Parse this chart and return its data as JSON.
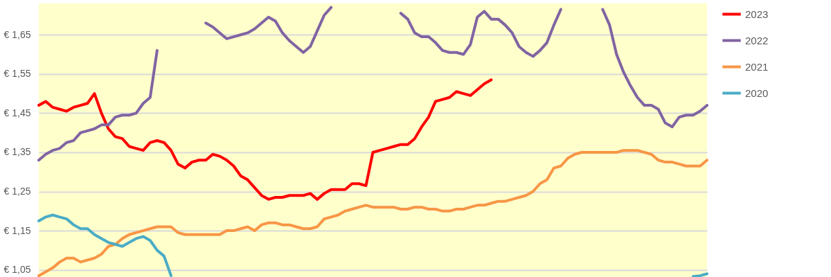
{
  "chart_data": {
    "type": "line",
    "categories": [
      null,
      null,
      null,
      null,
      null,
      null,
      null,
      null,
      null,
      null,
      null,
      null,
      null,
      null,
      null,
      null,
      null,
      null,
      null,
      null,
      null,
      null,
      null,
      null,
      null,
      null,
      null,
      null,
      null,
      null,
      null,
      null,
      null,
      null,
      null,
      null,
      null,
      null,
      null,
      null,
      null,
      null,
      null,
      null,
      null,
      null,
      null,
      null,
      null,
      null,
      null,
      null,
      null,
      null,
      null,
      null,
      null,
      null,
      null,
      null,
      null,
      null,
      null,
      null,
      null,
      null,
      null,
      null,
      null,
      null,
      null,
      null,
      null,
      null,
      null,
      null,
      null,
      null,
      null,
      null,
      null,
      null,
      null,
      null,
      null,
      null,
      null,
      null,
      null,
      null,
      null,
      null,
      null,
      null,
      null,
      null,
      null
    ],
    "series": [
      {
        "name": "2023",
        "color": "#ff0000",
        "values": [
          1.47,
          1.48,
          1.465,
          1.46,
          1.455,
          1.465,
          1.47,
          1.475,
          1.5,
          1.45,
          1.41,
          1.39,
          1.385,
          1.365,
          1.36,
          1.355,
          1.375,
          1.38,
          1.375,
          1.355,
          1.32,
          1.31,
          1.325,
          1.33,
          1.33,
          1.345,
          1.34,
          1.33,
          1.315,
          1.29,
          1.28,
          1.26,
          1.24,
          1.23,
          1.235,
          1.235,
          1.24,
          1.24,
          1.24,
          1.245,
          1.23,
          1.245,
          1.255,
          1.255,
          1.255,
          1.27,
          1.27,
          1.265,
          1.35,
          1.355,
          1.36,
          1.365,
          1.37,
          1.37,
          1.385,
          1.415,
          1.44,
          1.48,
          1.485,
          1.49,
          1.505,
          1.5,
          1.495,
          1.51,
          1.525,
          1.535,
          null,
          null,
          null,
          null,
          null,
          null,
          null,
          null,
          null,
          null,
          null,
          null,
          null,
          null,
          null,
          null,
          null,
          null,
          null,
          null,
          null,
          null,
          null,
          null,
          null,
          null,
          null,
          null,
          null,
          null,
          null
        ]
      },
      {
        "name": "2022",
        "color": "#8064a2",
        "values": [
          1.33,
          1.345,
          1.355,
          1.36,
          1.375,
          1.38,
          1.4,
          1.405,
          1.41,
          1.42,
          1.42,
          1.44,
          1.445,
          1.445,
          1.45,
          1.475,
          1.49,
          1.61,
          null,
          null,
          null,
          null,
          null,
          null,
          1.68,
          1.67,
          1.655,
          1.64,
          1.645,
          1.65,
          1.655,
          1.665,
          1.68,
          1.695,
          1.685,
          1.655,
          1.635,
          1.62,
          1.605,
          1.62,
          1.66,
          1.7,
          1.72,
          null,
          null,
          null,
          null,
          null,
          null,
          null,
          null,
          null,
          1.705,
          1.69,
          1.655,
          1.645,
          1.645,
          1.63,
          1.61,
          1.605,
          1.605,
          1.6,
          1.625,
          1.695,
          1.71,
          1.69,
          1.69,
          1.675,
          1.655,
          1.62,
          1.605,
          1.595,
          1.61,
          1.63,
          1.675,
          1.715,
          null,
          null,
          null,
          null,
          null,
          1.715,
          1.675,
          1.6,
          1.555,
          1.52,
          1.49,
          1.47,
          1.47,
          1.46,
          1.425,
          1.415,
          1.44,
          1.445,
          1.445,
          1.455,
          1.47
        ]
      },
      {
        "name": "2021",
        "color": "#f79646",
        "values": [
          1.035,
          1.045,
          1.055,
          1.07,
          1.08,
          1.08,
          1.07,
          1.075,
          1.08,
          1.09,
          1.11,
          1.115,
          1.13,
          1.14,
          1.145,
          1.15,
          1.155,
          1.16,
          1.16,
          1.16,
          1.145,
          1.14,
          1.14,
          1.14,
          1.14,
          1.14,
          1.14,
          1.15,
          1.15,
          1.155,
          1.16,
          1.15,
          1.165,
          1.17,
          1.17,
          1.165,
          1.165,
          1.16,
          1.155,
          1.155,
          1.16,
          1.18,
          1.185,
          1.19,
          1.2,
          1.205,
          1.21,
          1.215,
          1.21,
          1.21,
          1.21,
          1.21,
          1.205,
          1.205,
          1.21,
          1.21,
          1.205,
          1.205,
          1.2,
          1.2,
          1.205,
          1.205,
          1.21,
          1.215,
          1.215,
          1.22,
          1.225,
          1.225,
          1.23,
          1.235,
          1.24,
          1.25,
          1.27,
          1.28,
          1.31,
          1.315,
          1.335,
          1.345,
          1.35,
          1.35,
          1.35,
          1.35,
          1.35,
          1.35,
          1.355,
          1.355,
          1.355,
          1.35,
          1.345,
          1.33,
          1.325,
          1.325,
          1.32,
          1.315,
          1.315,
          1.315,
          1.33
        ]
      },
      {
        "name": "2020",
        "color": "#4bacc6",
        "values": [
          1.175,
          1.185,
          1.19,
          1.185,
          1.18,
          1.165,
          1.155,
          1.155,
          1.14,
          1.13,
          1.12,
          1.115,
          1.11,
          1.12,
          1.13,
          1.135,
          1.125,
          1.1,
          1.085,
          1.035,
          null,
          null,
          null,
          null,
          null,
          null,
          null,
          null,
          null,
          null,
          null,
          null,
          null,
          null,
          null,
          null,
          null,
          null,
          null,
          null,
          null,
          null,
          null,
          null,
          null,
          null,
          null,
          null,
          null,
          null,
          null,
          null,
          null,
          null,
          null,
          null,
          null,
          null,
          null,
          null,
          null,
          null,
          null,
          null,
          null,
          null,
          null,
          null,
          null,
          null,
          null,
          null,
          null,
          null,
          null,
          null,
          null,
          null,
          null,
          null,
          null,
          null,
          null,
          null,
          null,
          null,
          null,
          null,
          null,
          null,
          null,
          null,
          null,
          null,
          1.033,
          1.035,
          1.04
        ]
      }
    ],
    "ylim": [
      1.03,
      1.73
    ],
    "yticks": [
      {
        "value": 1.05,
        "label": "€ 1,05"
      },
      {
        "value": 1.15,
        "label": "€ 1,15"
      },
      {
        "value": 1.25,
        "label": "€ 1,25"
      },
      {
        "value": 1.35,
        "label": "€ 1,35"
      },
      {
        "value": 1.45,
        "label": "€ 1,45"
      },
      {
        "value": 1.55,
        "label": "€ 1,55"
      },
      {
        "value": 1.65,
        "label": "€ 1,65"
      }
    ],
    "grid": "y",
    "legend": "right",
    "tick_labels": "y",
    "marker": "none",
    "line_style": "solid"
  }
}
